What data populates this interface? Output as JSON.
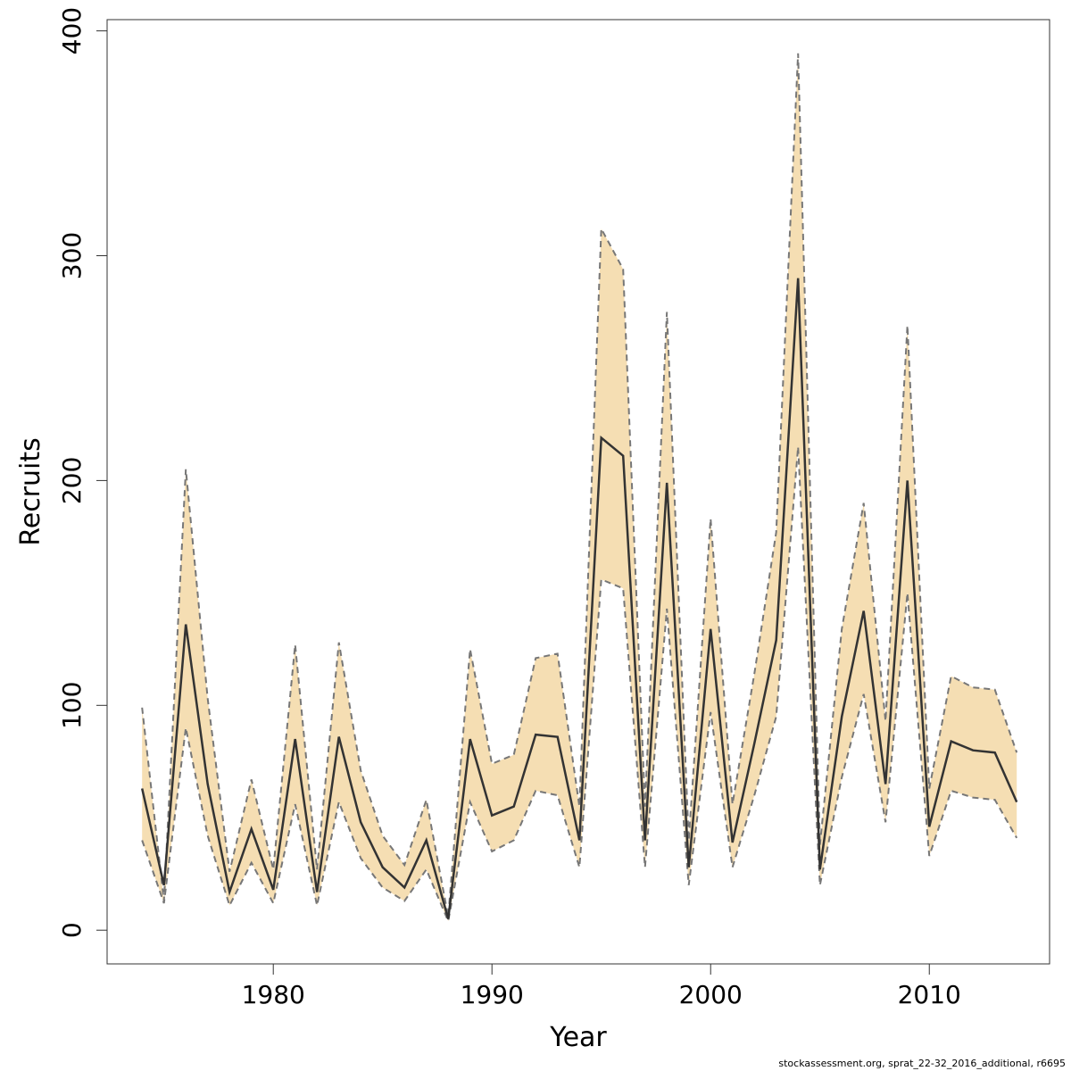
{
  "chart_data": {
    "type": "line",
    "xlabel": "Year",
    "ylabel": "Recruits",
    "xlim": [
      1972.4,
      2015.5
    ],
    "ylim": [
      -15,
      405
    ],
    "x_ticks": [
      1980,
      1990,
      2000,
      2010
    ],
    "y_ticks": [
      0,
      100,
      200,
      300,
      400
    ],
    "band_color": "#f5deb3",
    "line_color": "#333333",
    "bound_color": "#777777",
    "x": [
      1974,
      1975,
      1976,
      1977,
      1978,
      1979,
      1980,
      1981,
      1982,
      1983,
      1984,
      1985,
      1986,
      1987,
      1988,
      1989,
      1990,
      1991,
      1992,
      1993,
      1994,
      1995,
      1996,
      1997,
      1998,
      1999,
      2000,
      2001,
      2002,
      2003,
      2004,
      2005,
      2006,
      2007,
      2008,
      2009,
      2010,
      2011,
      2012,
      2013,
      2014
    ],
    "series": [
      {
        "values": [
          63,
          20,
          136,
          65,
          17,
          45,
          18,
          85,
          17,
          86,
          48,
          28,
          19,
          40,
          5,
          85,
          51,
          55,
          87,
          86,
          40,
          219,
          211,
          40,
          199,
          28,
          134,
          39,
          83,
          129,
          290,
          27,
          95,
          142,
          65,
          200,
          46,
          84,
          80,
          79,
          57
        ]
      },
      {
        "values": [
          99,
          13,
          205,
          103,
          26,
          67,
          27,
          127,
          27,
          128,
          71,
          42,
          29,
          58,
          6,
          125,
          74,
          78,
          121,
          123,
          55,
          312,
          294,
          55,
          275,
          40,
          183,
          56,
          114,
          177,
          390,
          38,
          134,
          190,
          93,
          269,
          63,
          113,
          108,
          107,
          79
        ]
      },
      {
        "values": [
          40,
          12,
          90,
          42,
          11,
          30,
          12,
          56,
          11,
          57,
          32,
          19,
          13,
          27,
          4,
          57,
          35,
          40,
          62,
          60,
          28,
          156,
          152,
          28,
          143,
          20,
          97,
          28,
          60,
          95,
          215,
          20,
          68,
          105,
          48,
          150,
          33,
          62,
          59,
          58,
          41
        ]
      }
    ],
    "footer": "stockassessment.org, sprat_22-32_2016_additional, r6695"
  }
}
